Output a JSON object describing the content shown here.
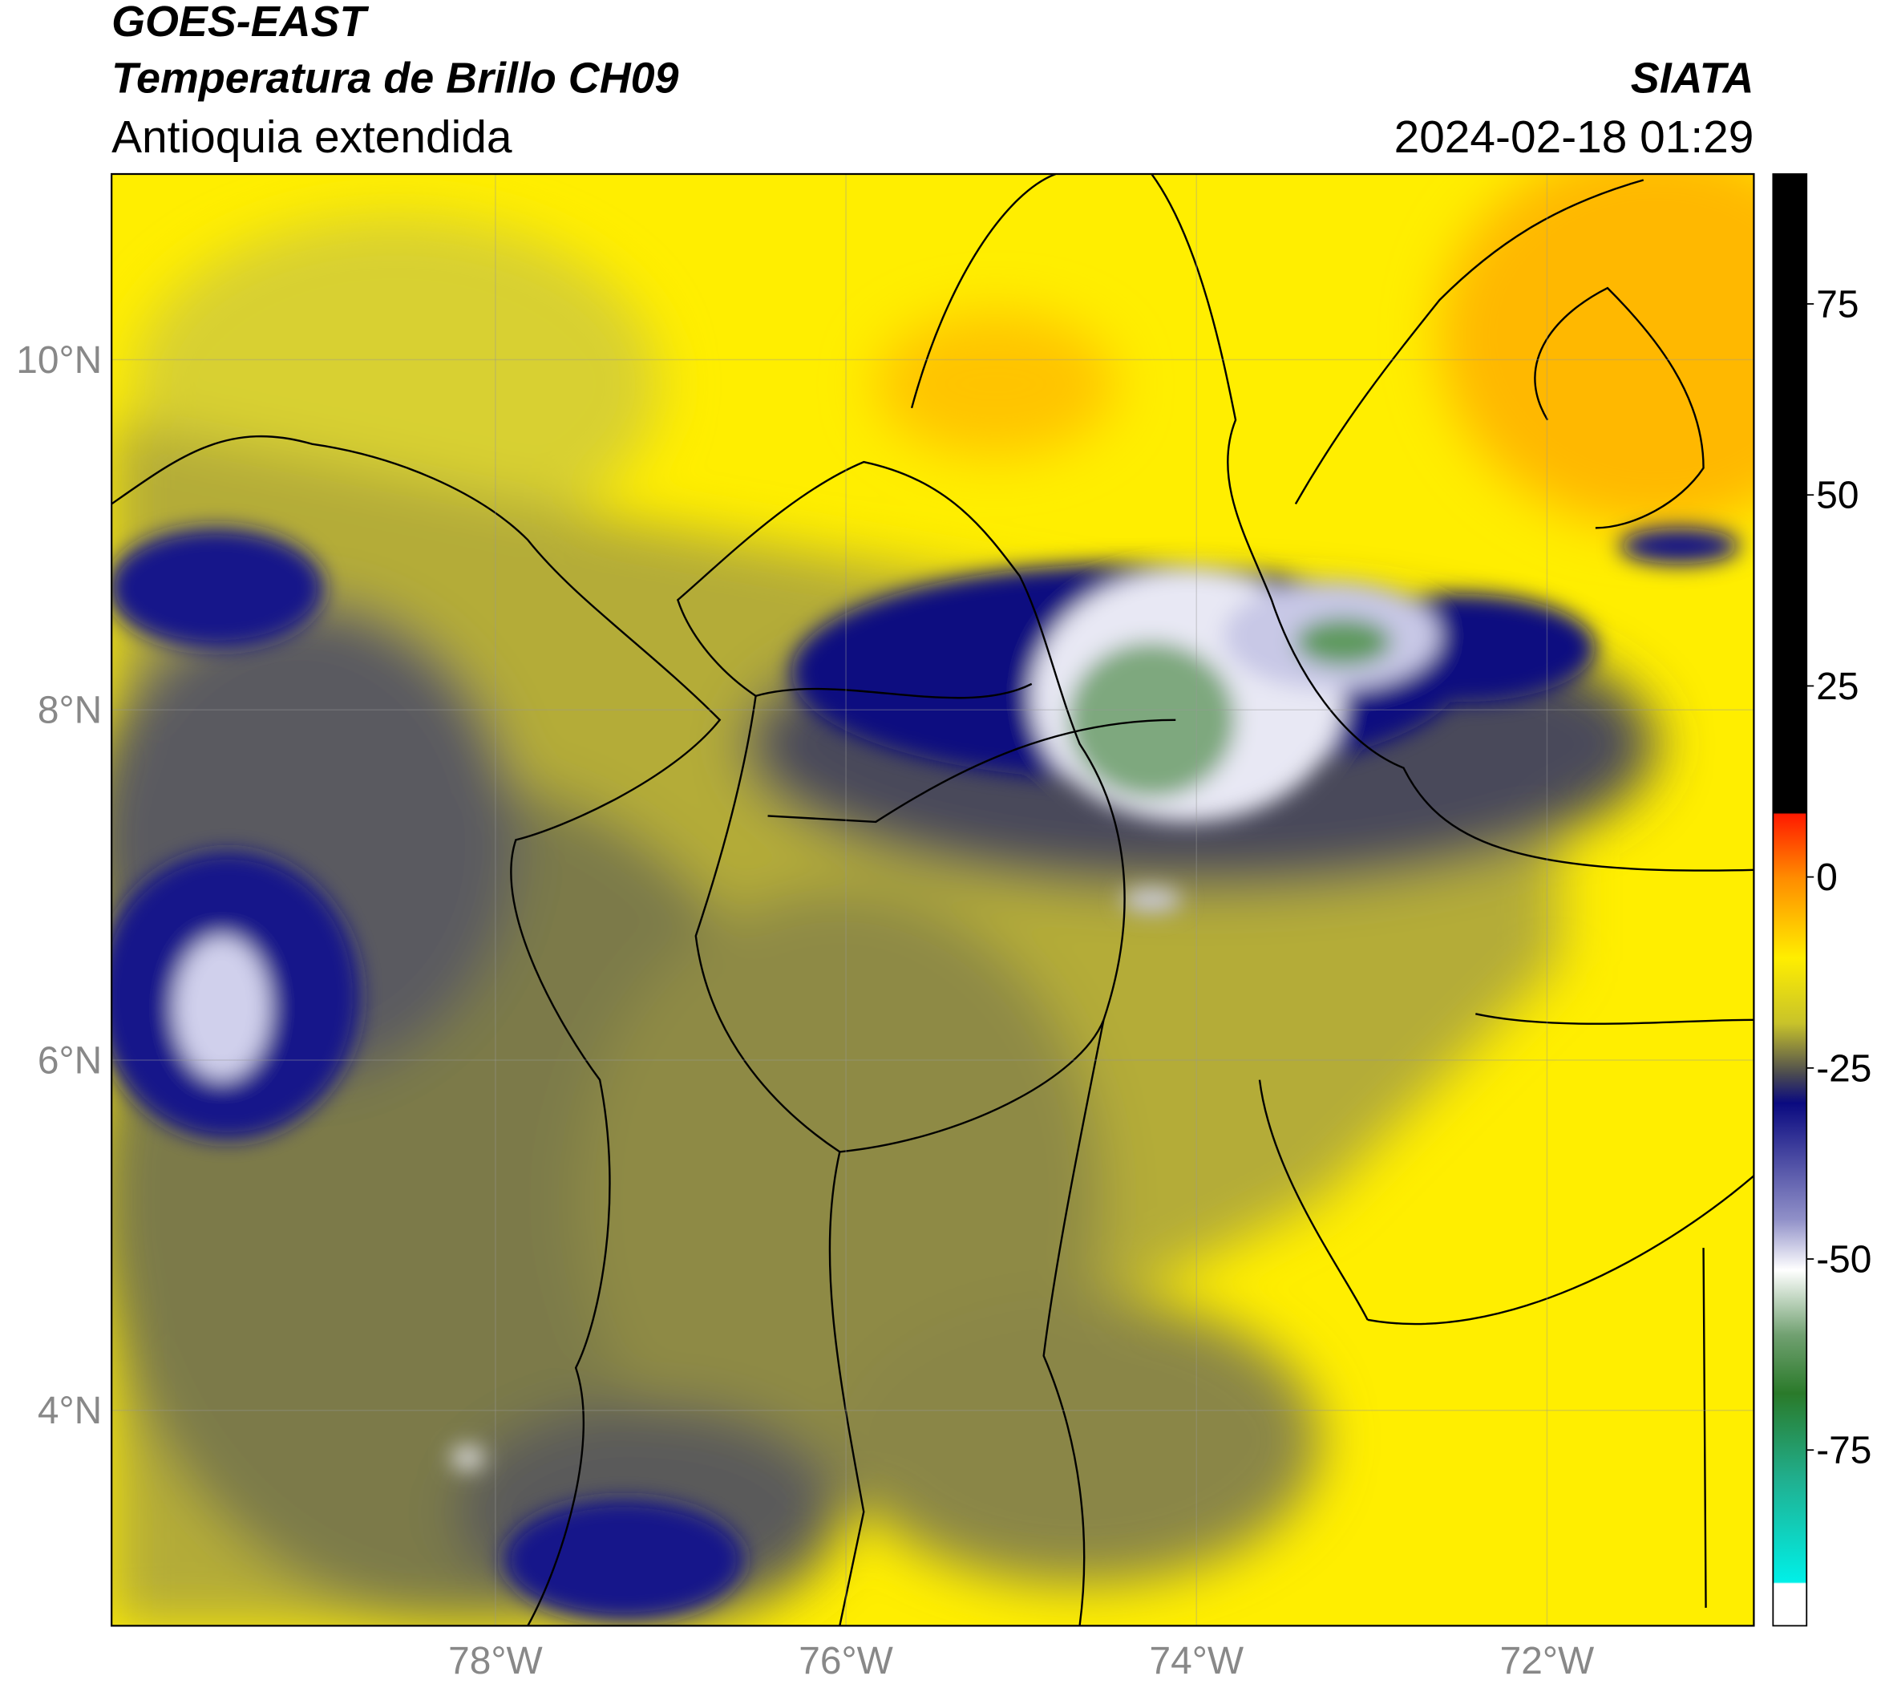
{
  "header": {
    "title": "GOES-EAST",
    "subtitle": "Temperatura de Brillo CH09",
    "region": "Antioquia extendida",
    "source": "SIATA",
    "datetime": "2024-02-18 01:29"
  },
  "map": {
    "xlim": [
      -80.19,
      -70.82
    ],
    "ylim": [
      2.77,
      11.06
    ],
    "xticks": [
      {
        "value": -78,
        "label": "78°W"
      },
      {
        "value": -76,
        "label": "76°W"
      },
      {
        "value": -74,
        "label": "74°W"
      },
      {
        "value": -72,
        "label": "72°W"
      }
    ],
    "yticks": [
      {
        "value": 4,
        "label": "4°N"
      },
      {
        "value": 6,
        "label": "6°N"
      },
      {
        "value": 8,
        "label": "8°N"
      },
      {
        "value": 10,
        "label": "10°N"
      }
    ],
    "grid": true
  },
  "colorbar": {
    "clim": [
      -98,
      92
    ],
    "ticks": [
      -75,
      -50,
      -25,
      0,
      25,
      50,
      75
    ]
  }
}
